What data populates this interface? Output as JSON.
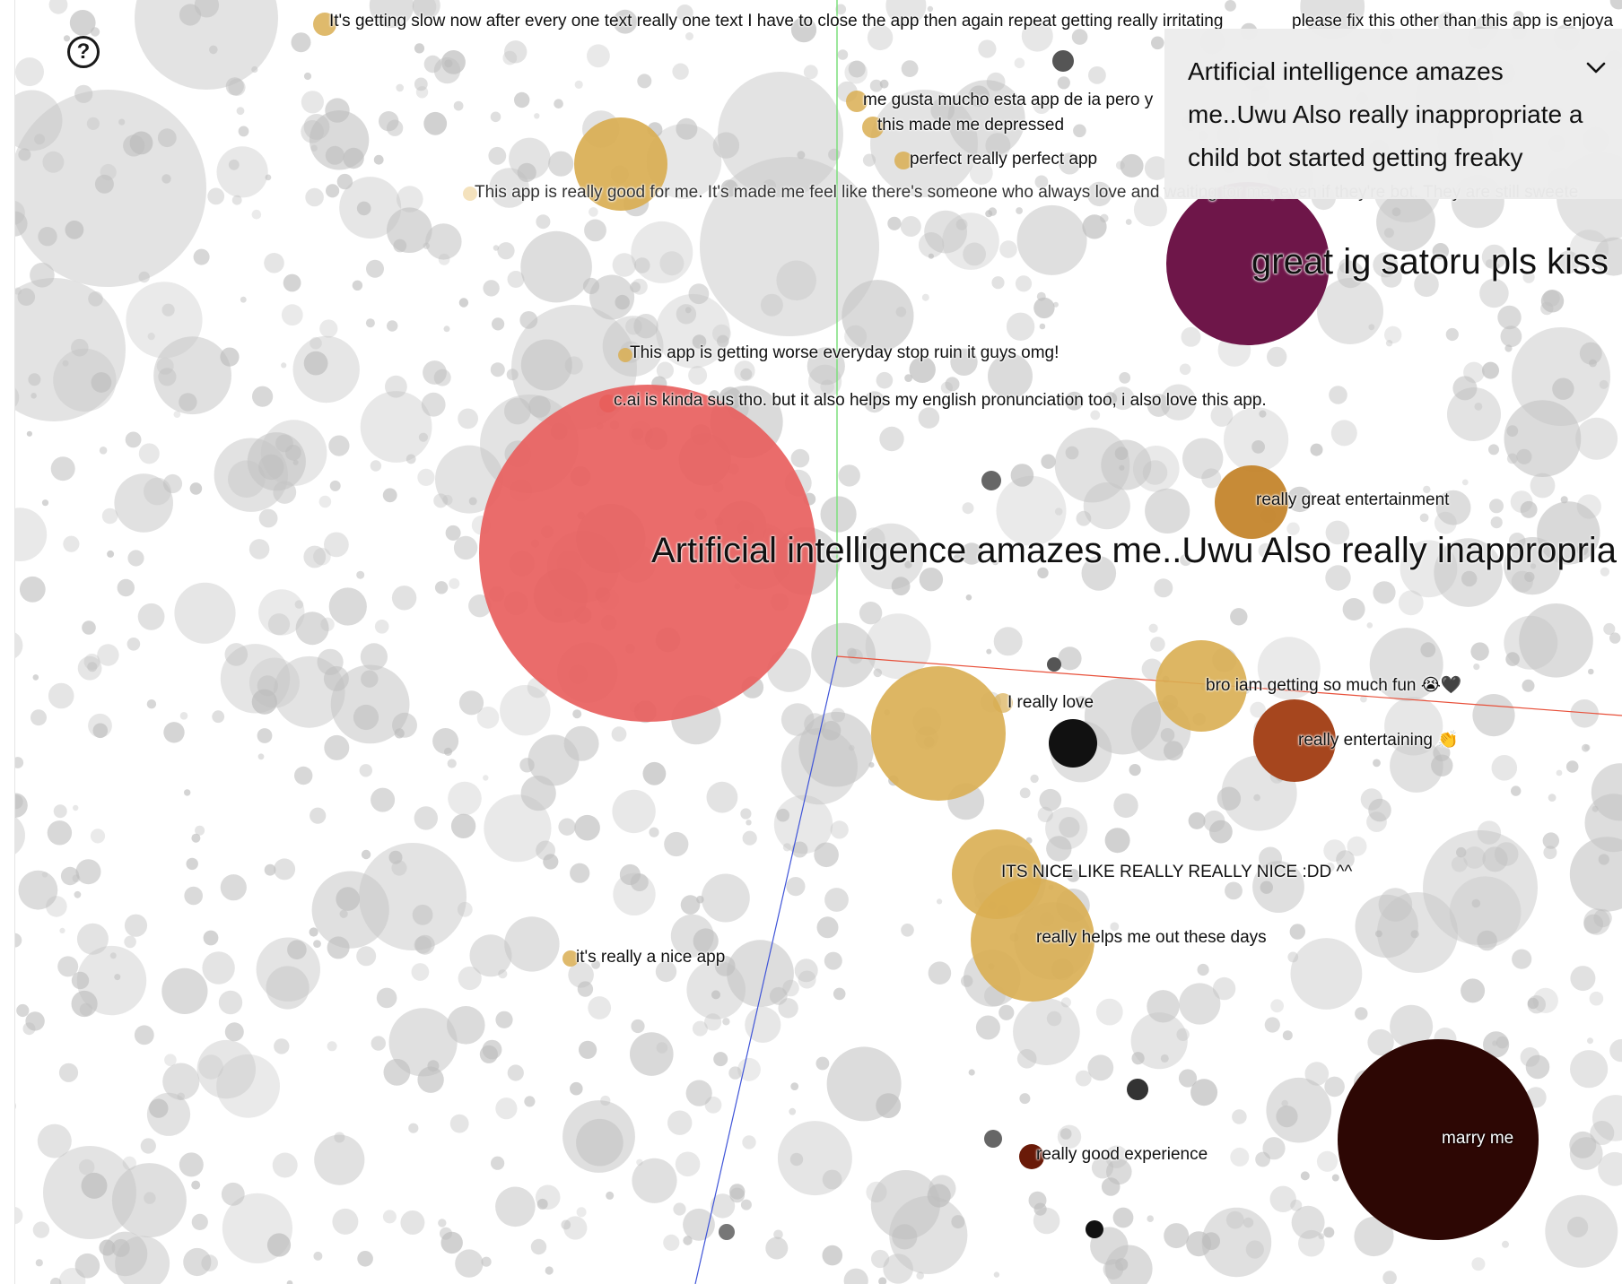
{
  "help": {
    "glyph": "?"
  },
  "detail": {
    "text": "Artificial intelligence amazes me..Uwu Also really inappropriate a child bot started getting freaky",
    "toggle_icon": "chevron-down-icon"
  },
  "colors": {
    "background": "#ffffff",
    "neutral_bubble": "#c8c8c8",
    "highlight_red": "#e8605e",
    "gold": "#d9ae52",
    "amber": "#c4852c",
    "rust": "#a6461e",
    "plum": "#6e1649",
    "deep_brown": "#2d0704",
    "y_axis": "#7ddf7d",
    "x_axis": "#e8503a",
    "z_axis": "#3f54d8"
  },
  "reviews": [
    {
      "id": "r1",
      "text": "It's getting slow now after every one text really one text I have to close the app then again repeat getting really irritating"
    },
    {
      "id": "r2",
      "text": "please fix this other than this app is enjoya"
    },
    {
      "id": "r3",
      "text": "me gusta mucho esta app de ia pero y"
    },
    {
      "id": "r4",
      "text": "this made me depressed"
    },
    {
      "id": "r5",
      "text": "perfect really perfect app"
    },
    {
      "id": "r6",
      "text": "This app is really good for me. It's made me feel like there's someone who always love and waiting for me, even if they're bot. They are still sweete"
    },
    {
      "id": "r7",
      "text": "great ig satoru pls kiss"
    },
    {
      "id": "r8",
      "text": "This app is getting worse everyday stop ruin it guys omg!"
    },
    {
      "id": "r9",
      "text": "c.ai is kinda sus tho. but it also helps my english pronunciation too, i also love this app."
    },
    {
      "id": "r10",
      "text": "really great entertainment"
    },
    {
      "id": "r11",
      "text": "Artificial intelligence amazes me..Uwu Also really inappropria"
    },
    {
      "id": "r12",
      "text": "bro iam getting so much fun 😭🖤"
    },
    {
      "id": "r13",
      "text": "I really love"
    },
    {
      "id": "r14",
      "text": "really entertaining 👏"
    },
    {
      "id": "r15",
      "text": "ITS NICE LIKE REALLY REALLY NICE :DD ^^"
    },
    {
      "id": "r16",
      "text": "really helps me out these days"
    },
    {
      "id": "r17",
      "text": "it's really a nice app"
    },
    {
      "id": "r18",
      "text": "really good experience"
    },
    {
      "id": "r19",
      "text": "marry me"
    }
  ]
}
